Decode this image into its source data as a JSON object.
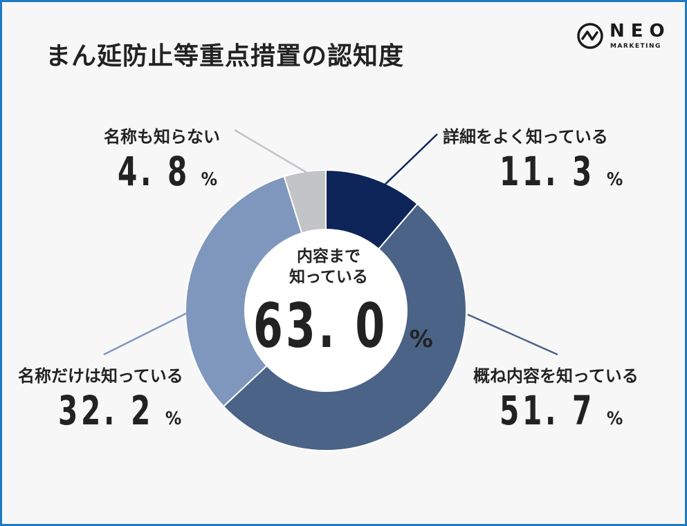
{
  "title": "まん延防止等重点措置の認知度",
  "logo": {
    "name": "NEO",
    "sub": "MARKETING"
  },
  "center": {
    "label_line1": "内容まで",
    "label_line2": "知っている",
    "value": "63. 0",
    "unit": "%"
  },
  "chart_data": {
    "type": "pie",
    "title": "まん延防止等重点措置の認知度",
    "slices": [
      {
        "label": "詳細をよく知っている",
        "value": 11.3,
        "display": "11. 3",
        "unit": "%",
        "color": "#0e2559"
      },
      {
        "label": "概ね内容を知っている",
        "value": 51.7,
        "display": "51. 7",
        "unit": "%",
        "color": "#4a6387"
      },
      {
        "label": "名称だけは知っている",
        "value": 32.2,
        "display": "32. 2",
        "unit": "%",
        "color": "#7f97bd"
      },
      {
        "label": "名称も知らない",
        "value": 4.8,
        "display": "4. 8",
        "unit": "%",
        "color": "#c2c4c7"
      }
    ],
    "leader_colors": [
      "#0e2559",
      "#4a6387",
      "#7f97bd",
      "#c2c4c7"
    ]
  }
}
